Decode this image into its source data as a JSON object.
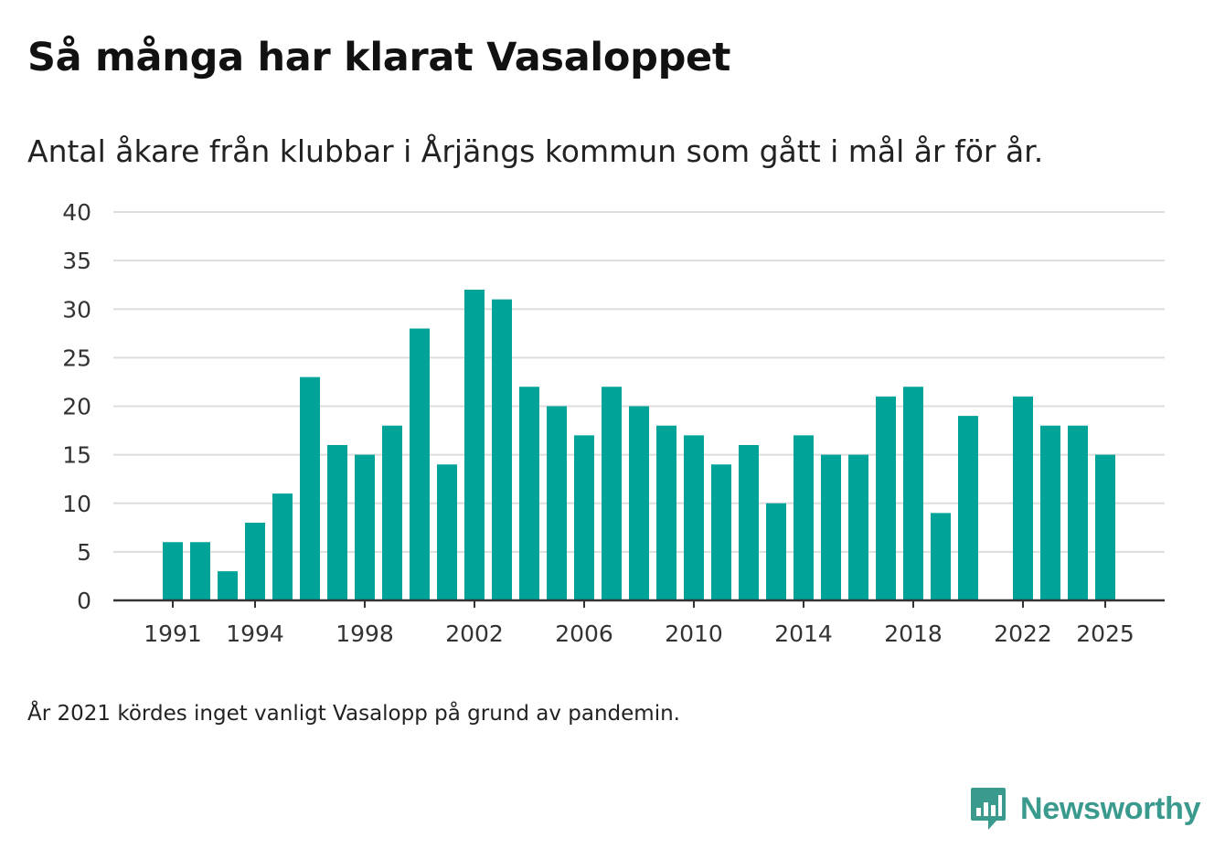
{
  "title": "Så många har klarat Vasaloppet",
  "subtitle": "Antal åkare från klubbar i Årjängs kommun som gått i mål år för år.",
  "footnote": "År 2021 kördes inget vanligt Vasalopp på grund av pandemin.",
  "brand": {
    "name": "Newsworthy",
    "logo_icon": "newsworthy-logo-icon"
  },
  "colors": {
    "bar": "#00a398",
    "grid": "#dddddd",
    "axis": "#333333",
    "brand": "#3a9a8e"
  },
  "chart_data": {
    "type": "bar",
    "title": "Så många har klarat Vasaloppet",
    "subtitle": "Antal åkare från klubbar i Årjängs kommun som gått i mål år för år.",
    "xlabel": "",
    "ylabel": "",
    "categories": [
      1991,
      1992,
      1993,
      1994,
      1995,
      1996,
      1997,
      1998,
      1999,
      2000,
      2001,
      2002,
      2003,
      2004,
      2005,
      2006,
      2007,
      2008,
      2009,
      2010,
      2011,
      2012,
      2013,
      2014,
      2015,
      2016,
      2017,
      2018,
      2019,
      2020,
      2021,
      2022,
      2023,
      2024,
      2025
    ],
    "values": [
      6,
      6,
      3,
      8,
      11,
      23,
      16,
      15,
      18,
      28,
      14,
      32,
      31,
      22,
      20,
      17,
      22,
      20,
      18,
      17,
      14,
      16,
      10,
      17,
      15,
      15,
      21,
      22,
      9,
      19,
      null,
      21,
      18,
      18,
      15
    ],
    "ylim": [
      0,
      40
    ],
    "yticks": [
      0,
      5,
      10,
      15,
      20,
      25,
      30,
      35,
      40
    ],
    "xtick_labels": [
      "1991",
      "1994",
      "1998",
      "2002",
      "2006",
      "2010",
      "2014",
      "2018",
      "2022",
      "2025"
    ],
    "grid": true,
    "legend": "none"
  }
}
